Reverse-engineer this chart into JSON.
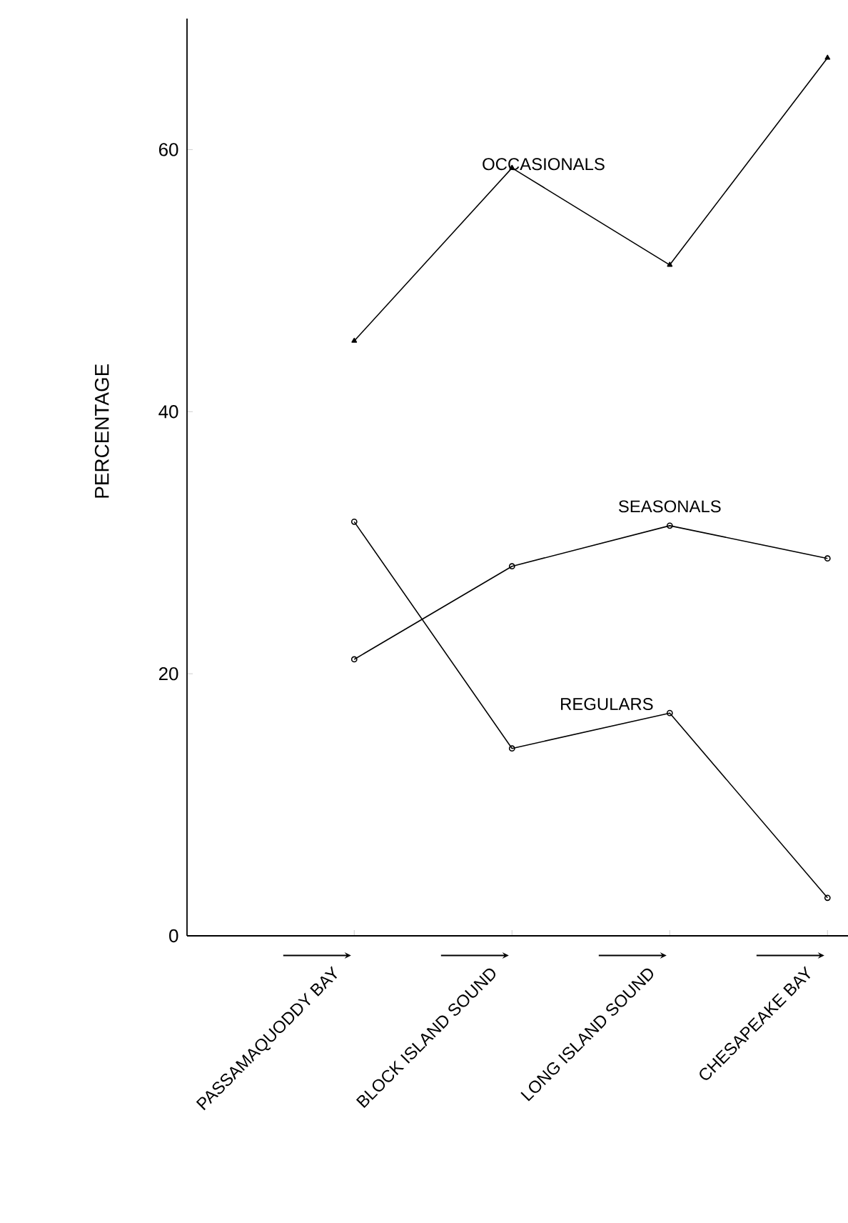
{
  "chart_data": {
    "type": "line",
    "ylabel": "PERCENTAGE",
    "categories": [
      "PASSAMAQUODDY BAY",
      "BLOCK ISLAND SOUND",
      "LONG ISLAND SOUND",
      "CHESAPEAKE BAY"
    ],
    "ylim": [
      0,
      70
    ],
    "yticks": [
      0,
      20,
      40,
      60
    ],
    "legend": false,
    "grid": false,
    "series": [
      {
        "name": "OCCASIONALS",
        "color": "#000000",
        "marker": "triangle",
        "values": [
          45.4,
          58.6,
          51.2,
          67
        ]
      },
      {
        "name": "SEASONALS",
        "color": "#000000",
        "marker": "circle",
        "values": [
          21.1,
          28.2,
          31.3,
          28.8
        ]
      },
      {
        "name": "REGULARS",
        "color": "#000000",
        "marker": "circle",
        "values": [
          31.6,
          14.3,
          17.0,
          2.9
        ]
      }
    ]
  }
}
